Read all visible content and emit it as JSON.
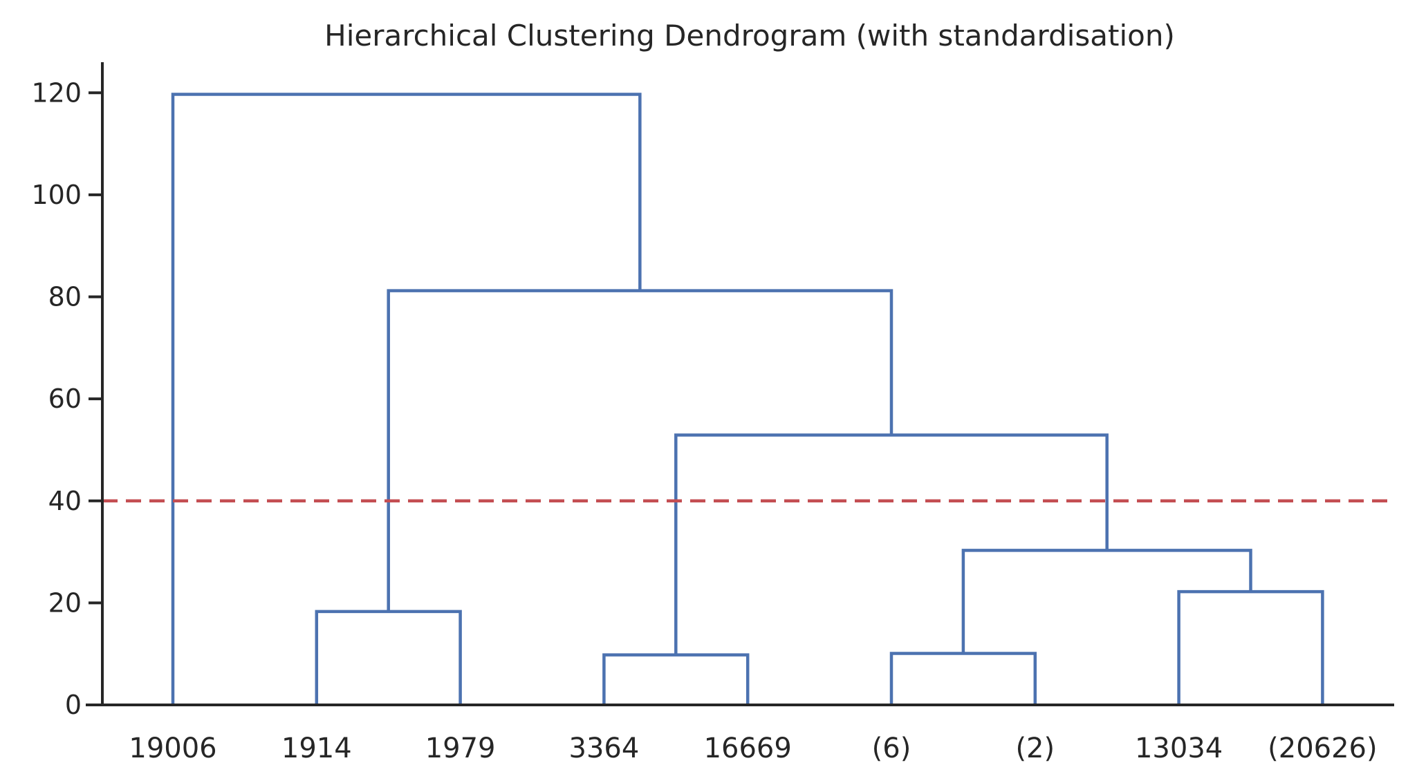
{
  "chart_data": {
    "type": "dendrogram",
    "title": "Hierarchical Clustering Dendrogram (with standardisation)",
    "xlabel": "",
    "ylabel": "",
    "ylim": [
      0,
      126
    ],
    "yticks": [
      0,
      20,
      40,
      60,
      80,
      100,
      120
    ],
    "ytick_labels": [
      "0",
      "20",
      "40",
      "60",
      "80",
      "100",
      "120"
    ],
    "leaves": [
      "19006",
      "1914",
      "1979",
      "3364",
      "16669",
      "(6)",
      "(2)",
      "13034",
      "(20626)"
    ],
    "merges": [
      {
        "left": "leaf:1",
        "right": "leaf:2",
        "height": 18.3
      },
      {
        "left": "leaf:3",
        "right": "leaf:4",
        "height": 9.8
      },
      {
        "left": "leaf:5",
        "right": "leaf:6",
        "height": 10.1
      },
      {
        "left": "leaf:7",
        "right": "leaf:8",
        "height": 22.2
      },
      {
        "left": "node:2",
        "right": "node:3",
        "height": 30.3
      },
      {
        "left": "node:1",
        "right": "node:4",
        "height": 52.9
      },
      {
        "left": "node:0",
        "right": "node:5",
        "height": 81.2
      },
      {
        "left": "leaf:0",
        "right": "node:6",
        "height": 119.7
      }
    ],
    "threshold": 40,
    "colors": {
      "links": "#4c72b0",
      "threshold": "#c44e52",
      "axis": "#262626"
    },
    "grid": false,
    "legend": "none"
  }
}
